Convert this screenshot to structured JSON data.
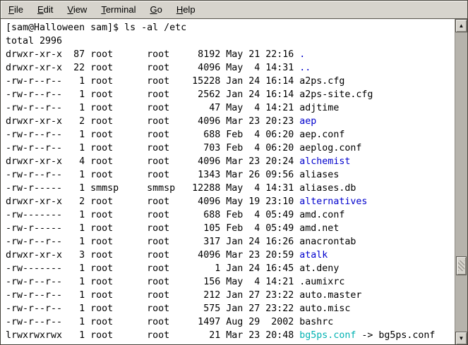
{
  "menubar": {
    "items": [
      {
        "label": "File"
      },
      {
        "label": "Edit"
      },
      {
        "label": "View"
      },
      {
        "label": "Terminal"
      },
      {
        "label": "Go"
      },
      {
        "label": "Help"
      }
    ]
  },
  "terminal": {
    "prompt": "[sam@Halloween sam]$",
    "command": "ls -al /etc",
    "total_line": "total 2996",
    "colors": {
      "text": "#000000",
      "background": "#ffffff",
      "directory": "#0000cd",
      "symlink": "#00b2b2"
    },
    "listing": [
      {
        "perms": "drwxr-xr-x",
        "links": "87",
        "owner": "root",
        "group": "root",
        "size": "8192",
        "date": "May 21 22:16",
        "name": ".",
        "type": "dir"
      },
      {
        "perms": "drwxr-xr-x",
        "links": "22",
        "owner": "root",
        "group": "root",
        "size": "4096",
        "date": "May  4 14:31",
        "name": "..",
        "type": "dir"
      },
      {
        "perms": "-rw-r--r--",
        "links": "1",
        "owner": "root",
        "group": "root",
        "size": "15228",
        "date": "Jan 24 16:14",
        "name": "a2ps.cfg",
        "type": "file"
      },
      {
        "perms": "-rw-r--r--",
        "links": "1",
        "owner": "root",
        "group": "root",
        "size": "2562",
        "date": "Jan 24 16:14",
        "name": "a2ps-site.cfg",
        "type": "file"
      },
      {
        "perms": "-rw-r--r--",
        "links": "1",
        "owner": "root",
        "group": "root",
        "size": "47",
        "date": "May  4 14:21",
        "name": "adjtime",
        "type": "file"
      },
      {
        "perms": "drwxr-xr-x",
        "links": "2",
        "owner": "root",
        "group": "root",
        "size": "4096",
        "date": "Mar 23 20:23",
        "name": "aep",
        "type": "dir"
      },
      {
        "perms": "-rw-r--r--",
        "links": "1",
        "owner": "root",
        "group": "root",
        "size": "688",
        "date": "Feb  4 06:20",
        "name": "aep.conf",
        "type": "file"
      },
      {
        "perms": "-rw-r--r--",
        "links": "1",
        "owner": "root",
        "group": "root",
        "size": "703",
        "date": "Feb  4 06:20",
        "name": "aeplog.conf",
        "type": "file"
      },
      {
        "perms": "drwxr-xr-x",
        "links": "4",
        "owner": "root",
        "group": "root",
        "size": "4096",
        "date": "Mar 23 20:24",
        "name": "alchemist",
        "type": "dir"
      },
      {
        "perms": "-rw-r--r--",
        "links": "1",
        "owner": "root",
        "group": "root",
        "size": "1343",
        "date": "Mar 26 09:56",
        "name": "aliases",
        "type": "file"
      },
      {
        "perms": "-rw-r-----",
        "links": "1",
        "owner": "smmsp",
        "group": "smmsp",
        "size": "12288",
        "date": "May  4 14:31",
        "name": "aliases.db",
        "type": "file"
      },
      {
        "perms": "drwxr-xr-x",
        "links": "2",
        "owner": "root",
        "group": "root",
        "size": "4096",
        "date": "May 19 23:10",
        "name": "alternatives",
        "type": "dir"
      },
      {
        "perms": "-rw-------",
        "links": "1",
        "owner": "root",
        "group": "root",
        "size": "688",
        "date": "Feb  4 05:49",
        "name": "amd.conf",
        "type": "file"
      },
      {
        "perms": "-rw-r-----",
        "links": "1",
        "owner": "root",
        "group": "root",
        "size": "105",
        "date": "Feb  4 05:49",
        "name": "amd.net",
        "type": "file"
      },
      {
        "perms": "-rw-r--r--",
        "links": "1",
        "owner": "root",
        "group": "root",
        "size": "317",
        "date": "Jan 24 16:26",
        "name": "anacrontab",
        "type": "file"
      },
      {
        "perms": "drwxr-xr-x",
        "links": "3",
        "owner": "root",
        "group": "root",
        "size": "4096",
        "date": "Mar 23 20:59",
        "name": "atalk",
        "type": "dir"
      },
      {
        "perms": "-rw-------",
        "links": "1",
        "owner": "root",
        "group": "root",
        "size": "1",
        "date": "Jan 24 16:45",
        "name": "at.deny",
        "type": "file"
      },
      {
        "perms": "-rw-r--r--",
        "links": "1",
        "owner": "root",
        "group": "root",
        "size": "156",
        "date": "May  4 14:21",
        "name": ".aumixrc",
        "type": "file"
      },
      {
        "perms": "-rw-r--r--",
        "links": "1",
        "owner": "root",
        "group": "root",
        "size": "212",
        "date": "Jan 27 23:22",
        "name": "auto.master",
        "type": "file"
      },
      {
        "perms": "-rw-r--r--",
        "links": "1",
        "owner": "root",
        "group": "root",
        "size": "575",
        "date": "Jan 27 23:22",
        "name": "auto.misc",
        "type": "file"
      },
      {
        "perms": "-rw-r--r--",
        "links": "1",
        "owner": "root",
        "group": "root",
        "size": "1497",
        "date": "Aug 29  2002",
        "name": "bashrc",
        "type": "file"
      },
      {
        "perms": "lrwxrwxrwx",
        "links": "1",
        "owner": "root",
        "group": "root",
        "size": "21",
        "date": "Mar 23 20:48",
        "name": "bg5ps.conf",
        "type": "link",
        "target": "bg5ps.conf"
      }
    ]
  },
  "scrollbar": {
    "up_icon": "▲",
    "down_icon": "▼",
    "thumb_position_pct": 80
  }
}
